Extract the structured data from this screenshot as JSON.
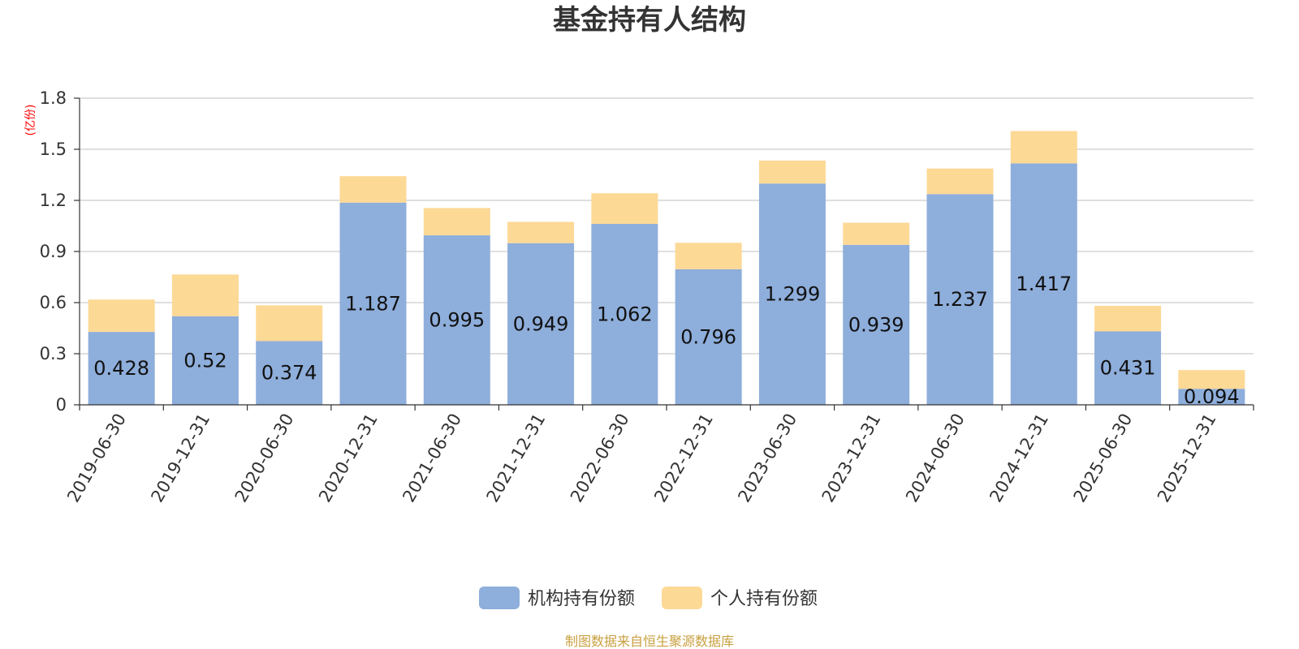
{
  "chart_data": {
    "type": "bar",
    "stacked": true,
    "title": "基金持有人结构",
    "y_unit": "(亿份)",
    "categories": [
      "2019-06-30",
      "2019-12-31",
      "2020-06-30",
      "2020-12-31",
      "2021-06-30",
      "2021-12-31",
      "2022-06-30",
      "2022-12-31",
      "2023-06-30",
      "2023-12-31",
      "2024-06-30",
      "2024-12-31",
      "2025-06-30",
      "2025-12-31"
    ],
    "series": [
      {
        "name": "机构持有份额",
        "color": "#8eaedb",
        "values": [
          0.428,
          0.52,
          0.374,
          1.187,
          0.995,
          0.949,
          1.062,
          0.796,
          1.299,
          0.939,
          1.237,
          1.417,
          0.431,
          0.094
        ],
        "labels": [
          "0.428",
          "0.52",
          "0.374",
          "1.187",
          "0.995",
          "0.949",
          "1.062",
          "0.796",
          "1.299",
          "0.939",
          "1.237",
          "1.417",
          "0.431",
          "0.094"
        ]
      },
      {
        "name": "个人持有份额",
        "color": "#fdd996",
        "values": [
          0.19,
          0.245,
          0.21,
          0.155,
          0.16,
          0.125,
          0.18,
          0.155,
          0.135,
          0.13,
          0.15,
          0.19,
          0.15,
          0.11
        ]
      }
    ],
    "ylim": [
      0,
      1.8
    ],
    "yticks": [
      "0",
      "0.3",
      "0.6",
      "0.9",
      "1.2",
      "1.5",
      "1.8"
    ],
    "grid": true,
    "legend_position": "bottom-center"
  },
  "footer": {
    "source": "制图数据来自恒生聚源数据库"
  },
  "colors": {
    "unit": "#ff0000",
    "source": "#c8a040",
    "axis": "#333333",
    "grid": "#cccccc"
  }
}
